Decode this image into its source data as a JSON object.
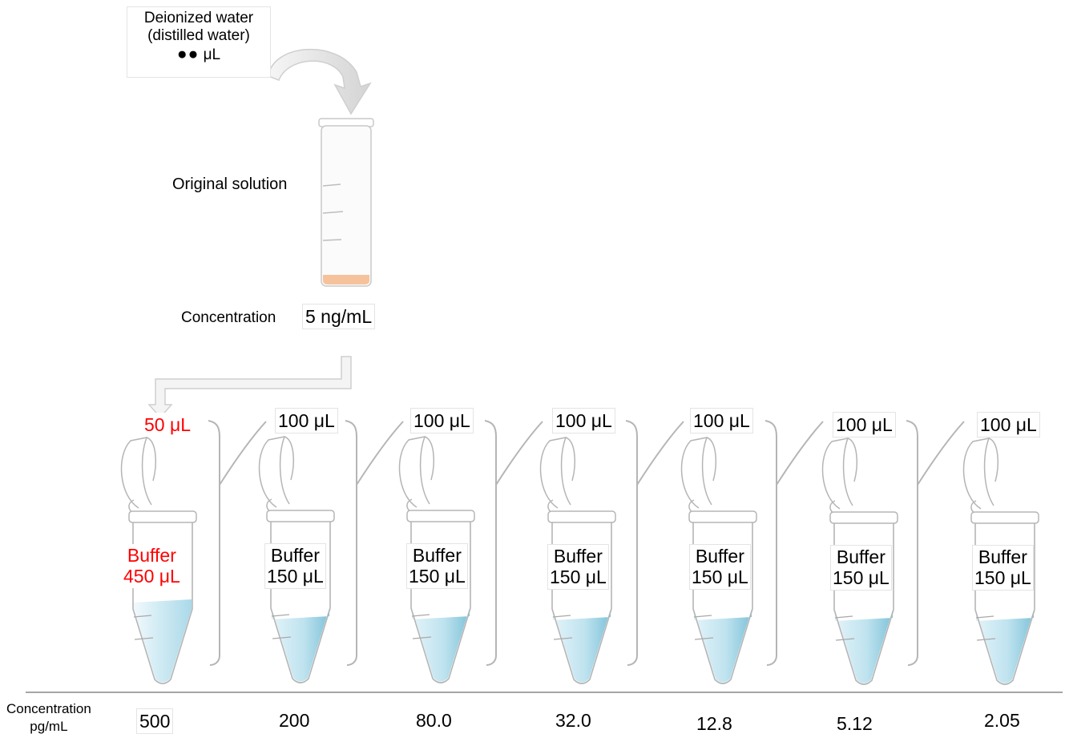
{
  "water": {
    "line1": "Deionized water",
    "line2": "(distilled water)",
    "dots": "●●",
    "unit": "μL"
  },
  "original_label": "Original solution",
  "concentration": {
    "label": "Concentration",
    "value": "5 ng/mL"
  },
  "transfer_volumes": [
    "50 μL",
    "100 μL",
    "100 μL",
    "100 μL",
    "100 μL",
    "100 μL",
    "100 μL"
  ],
  "buffer_word": "Buffer",
  "buffer_volumes": [
    "450 μL",
    "150 μL",
    "150 μL",
    "150 μL",
    "150 μL",
    "150 μL",
    "150 μL"
  ],
  "bottom": {
    "label_line1": "Concentration",
    "label_line2": "pg/mL"
  },
  "concentrations": [
    "500",
    "200",
    "80.0",
    "32.0",
    "12.8",
    "5.12",
    "2.05"
  ],
  "colors": {
    "highlight": "#ff0000",
    "liquid": "#8fcde0",
    "sediment": "#f6c29c",
    "outline": "#b5b5b5"
  }
}
